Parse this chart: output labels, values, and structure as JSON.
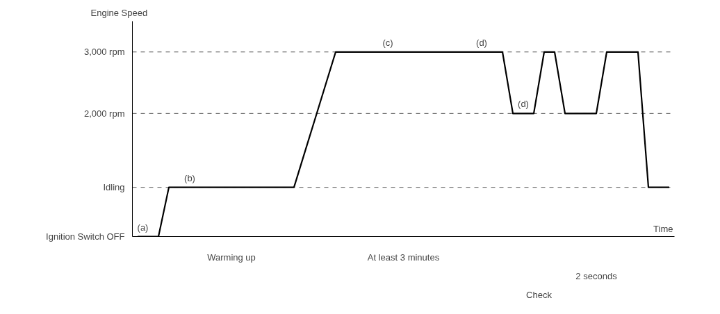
{
  "chart_data": {
    "type": "line",
    "ylabel": "Engine Speed",
    "categories": [
      null,
      null,
      null,
      null,
      null,
      null,
      null,
      null,
      null,
      null,
      null,
      null,
      null,
      null,
      null,
      null,
      null,
      null,
      null,
      null,
      null,
      null,
      null,
      null,
      null,
      null,
      null,
      null,
      null,
      null,
      null,
      null,
      null,
      null,
      null,
      null,
      null,
      null,
      null,
      null,
      null,
      null,
      null,
      null,
      null,
      null,
      null,
      null,
      null,
      null,
      null,
      null
    ],
    "values": [
      0,
      0,
      0,
      800,
      800,
      800,
      800,
      800,
      800,
      800,
      800,
      800,
      800,
      800,
      800,
      800,
      1350,
      1900,
      2450,
      3000,
      3000,
      3000,
      3000,
      3000,
      3000,
      3000,
      3000,
      3000,
      3000,
      3000,
      3000,
      3000,
      3000,
      3000,
      3000,
      3000,
      2000,
      2000,
      2000,
      3000,
      3000,
      2000,
      2000,
      2000,
      2000,
      3000,
      3000,
      3000,
      3000,
      800,
      800,
      800
    ],
    "color": "#000000",
    "marker": "none",
    "line_style": "solid",
    "grid": false,
    "tick_labels": "y",
    "ylim": [
      0,
      3500
    ],
    "yticks": [
      {
        "value": 0,
        "label": "Ignition Switch OFF"
      },
      {
        "value": 800,
        "label": "Idling"
      },
      {
        "value": 2000,
        "label": "2,000 rpm"
      },
      {
        "value": 3000,
        "label": "3,000 rpm"
      }
    ],
    "ref_lines": [
      {
        "axis": "y",
        "value": 3000,
        "label": null,
        "line_style": "dashed",
        "color": "#555555"
      },
      {
        "axis": "y",
        "value": 2000,
        "label": null,
        "line_style": "dashed",
        "color": "#555555"
      },
      {
        "axis": "y",
        "value": 800,
        "label": null,
        "line_style": "dashed",
        "color": "#555555"
      }
    ],
    "annotations": [
      "(a)",
      "(b)",
      "(c)",
      "(d)",
      "(d)",
      "Warming up",
      "At least 3 minutes",
      "Check",
      "2 seconds",
      "Time"
    ]
  }
}
